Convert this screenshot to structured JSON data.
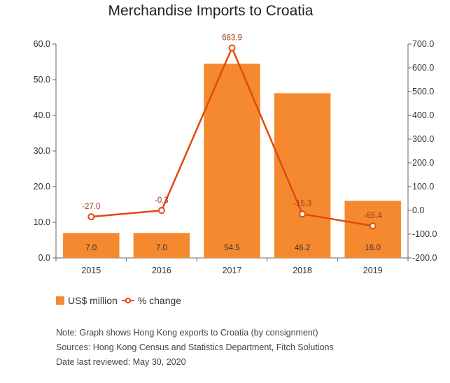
{
  "chart_data": {
    "type": "bar",
    "title": "Merchandise Imports to Croatia",
    "categories": [
      "2015",
      "2016",
      "2017",
      "2018",
      "2019"
    ],
    "series": [
      {
        "name": "US$ million",
        "kind": "bar",
        "axis": "left",
        "values": [
          7.0,
          7.0,
          54.5,
          46.2,
          16.0
        ],
        "labels": [
          "7.0",
          "7.0",
          "54.5",
          "46.2",
          "16.0"
        ]
      },
      {
        "name": "% change",
        "kind": "line",
        "axis": "right",
        "values": [
          -27.0,
          -0.3,
          683.9,
          -15.3,
          -65.4
        ],
        "labels": [
          "-27.0",
          "-0.3",
          "683.9",
          "-15.3",
          "-65.4"
        ]
      }
    ],
    "ylim": [
      0,
      60
    ],
    "y2lim": [
      -200,
      700
    ],
    "yticks": [
      "0.0",
      "10.0",
      "20.0",
      "30.0",
      "40.0",
      "50.0",
      "60.0"
    ],
    "y2ticks": [
      "-200.0",
      "-100.0",
      "0.0",
      "100.0",
      "200.0",
      "300.0",
      "400.0",
      "500.0",
      "600.0",
      "700.0"
    ],
    "grid": false,
    "legend": "bottom-left"
  },
  "colors": {
    "bar": "#f5892f",
    "line": "#e04a0e"
  },
  "legend": {
    "bar_label": "US$ million",
    "line_label": "% change"
  },
  "notes": {
    "note": "Note: Graph shows Hong Kong exports to Croatia (by consignment)",
    "sources": "Sources: Hong Kong Census and Statistics Department, Fitch Solutions",
    "reviewed": "Date last reviewed: May 30, 2020"
  }
}
